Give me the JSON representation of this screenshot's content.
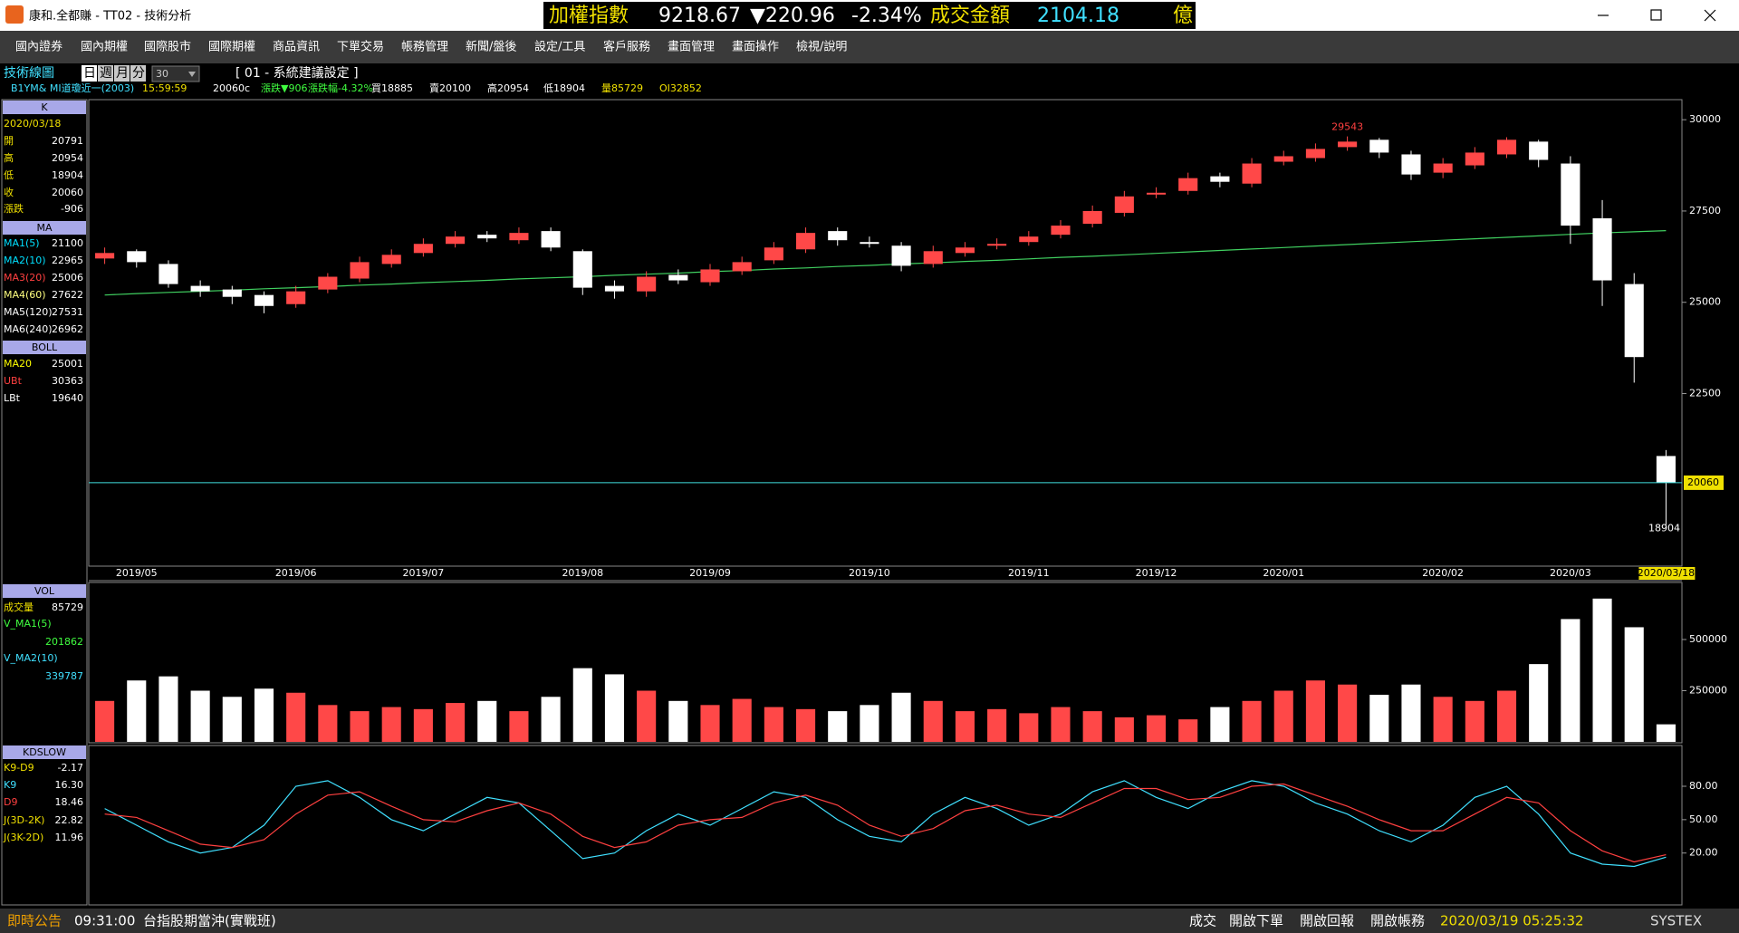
{
  "window": {
    "title": "康和.全都賺 - TT02 - 技術分析"
  },
  "ticker": {
    "index_name": "加權指數",
    "index_value": "9218.67",
    "change": "▼220.96",
    "change_pct": "-2.34%",
    "turnover_label": "成交金額",
    "turnover": "2104.18",
    "unit": "億"
  },
  "menu": [
    "國內證券",
    "國內期權",
    "國際股市",
    "國際期權",
    "商品資訊",
    "下單交易",
    "帳務管理",
    "新聞/盤後",
    "設定/工具",
    "客戶服務",
    "畫面管理",
    "畫面操作",
    "檢視/說明"
  ],
  "toolbar": {
    "label": "技術線圖",
    "periods": [
      "日",
      "週",
      "月",
      "分"
    ],
    "interval": "30",
    "preset": "[ 01 - 系統建議設定 ]"
  },
  "quote_line": [
    "B1YM&  MI道瓊近一(2003)",
    "15:59:59",
    "20060c",
    "漲跌▼906",
    "漲跌幅-4.32%",
    "買18885",
    "賣20100",
    "高20954",
    "低18904",
    "量85729",
    "OI32852"
  ],
  "panels": {
    "k": {
      "title": "K",
      "date": "2020/03/18",
      "labels": [
        "開",
        "高",
        "低",
        "收",
        "漲跌"
      ],
      "change": -906
    },
    "ma": {
      "title": "MA",
      "items": [
        {
          "name": "MA1(5)",
          "value": 21100,
          "color": "#00e0ff"
        },
        {
          "name": "MA2(10)",
          "value": 22965,
          "color": "#00e0ff"
        },
        {
          "name": "MA3(20)",
          "value": 25006,
          "color": "#ff4040"
        },
        {
          "name": "MA4(60)",
          "value": 27622,
          "color": "#ffff80"
        },
        {
          "name": "MA5(120)",
          "value": 27531,
          "color": "#ffffff"
        }
      ]
    },
    "boll": {
      "title": "BOLL",
      "items": [
        {
          "name": "MA20",
          "value": 25001,
          "color": "#ffff00"
        },
        {
          "name": "UBt",
          "value": 30363,
          "color": "#ff4040"
        },
        {
          "name": "LBt",
          "value": 19640,
          "color": "#ffffff"
        }
      ]
    }
  },
  "status_bar": {
    "left": [
      "即時公告",
      "09:31:00",
      "台指股期當沖(實戰班)"
    ],
    "right": [
      "成交",
      "開啟下單",
      "開啟回報",
      "開啟帳務",
      "2020/03/19 05:25:32",
      "SYSTEX"
    ]
  },
  "chart_data": [
    {
      "type": "candlestick",
      "categories": [
        null,
        "2019/05",
        null,
        null,
        null,
        null,
        "2019/06",
        null,
        null,
        null,
        "2019/07",
        null,
        null,
        null,
        null,
        "2019/08",
        null,
        null,
        null,
        "2019/09",
        null,
        null,
        null,
        null,
        "2019/10",
        null,
        null,
        null,
        null,
        "2019/11",
        null,
        null,
        null,
        "2019/12",
        null,
        null,
        null,
        "2020/01",
        null,
        null,
        null,
        null,
        "2020/02",
        null,
        null,
        null,
        "2020/03",
        null,
        null,
        "2020/03/18"
      ],
      "open": [
        26200,
        26400,
        26050,
        25450,
        25350,
        25200,
        24950,
        25350,
        25650,
        26050,
        26350,
        26600,
        26850,
        26700,
        26950,
        26400,
        25450,
        25300,
        25750,
        25550,
        25850,
        26150,
        26450,
        26950,
        26650,
        26550,
        26050,
        26350,
        26550,
        26650,
        26850,
        27150,
        27450,
        27950,
        28050,
        28450,
        28250,
        28850,
        28950,
        29250,
        29450,
        29050,
        28550,
        28750,
        29050,
        29400,
        28800,
        27300,
        25500,
        20791
      ],
      "high": [
        26500,
        26450,
        26150,
        25600,
        25450,
        25300,
        25450,
        25800,
        26250,
        26450,
        26750,
        26950,
        26950,
        27050,
        27050,
        26450,
        25600,
        25850,
        25900,
        26050,
        26250,
        26650,
        27050,
        27050,
        26800,
        26650,
        26550,
        26650,
        26750,
        26950,
        27250,
        27650,
        28050,
        28150,
        28550,
        28550,
        28950,
        29150,
        29350,
        29543,
        29500,
        29150,
        28950,
        29250,
        29520,
        29450,
        29000,
        27800,
        25800,
        20954
      ],
      "low": [
        26050,
        25950,
        25400,
        25150,
        24950,
        24700,
        24850,
        25250,
        25550,
        25950,
        26250,
        26500,
        26650,
        26600,
        26400,
        25200,
        25100,
        25150,
        25500,
        25450,
        25750,
        26050,
        26350,
        26550,
        26500,
        25850,
        25950,
        26250,
        26450,
        26550,
        26750,
        27050,
        27350,
        27850,
        27950,
        28150,
        28150,
        28750,
        28850,
        29150,
        28950,
        28350,
        28400,
        28650,
        28950,
        28700,
        26600,
        24900,
        22800,
        18904
      ],
      "close": [
        26350,
        26100,
        25500,
        25300,
        25150,
        24900,
        25300,
        25700,
        26100,
        26300,
        26600,
        26800,
        26750,
        26900,
        26500,
        25400,
        25300,
        25700,
        25600,
        25900,
        26100,
        26500,
        26900,
        26700,
        26600,
        26000,
        26400,
        26500,
        26600,
        26800,
        27100,
        27500,
        27900,
        28000,
        28400,
        28300,
        28800,
        29000,
        29200,
        29400,
        29100,
        28500,
        28800,
        29100,
        29450,
        28900,
        27100,
        25600,
        23500,
        20060
      ],
      "up_color": "#ff4848",
      "down_color": "#ffffff",
      "series": [
        {
          "name": "MA6(240)",
          "color": "#40d060",
          "values": [
            25200,
            25240,
            25270,
            25300,
            25330,
            25370,
            25400,
            25430,
            25470,
            25500,
            25540,
            25570,
            25600,
            25640,
            25670,
            25700,
            25740,
            25770,
            25800,
            25840,
            25870,
            25910,
            25940,
            25980,
            26010,
            26050,
            26080,
            26120,
            26150,
            26190,
            26230,
            26260,
            26300,
            26340,
            26380,
            26420,
            26460,
            26500,
            26540,
            26580,
            26620,
            26660,
            26700,
            26740,
            26780,
            26820,
            26860,
            26900,
            26930,
            26962
          ]
        }
      ],
      "ylim": [
        17800,
        30500
      ],
      "yticks": [
        22500,
        25000,
        27500,
        30000
      ]
    },
    {
      "type": "bar",
      "title": "VOL",
      "name": "成交量",
      "values": [
        200000,
        300000,
        320000,
        250000,
        220000,
        260000,
        240000,
        180000,
        150000,
        170000,
        160000,
        190000,
        200000,
        150000,
        220000,
        360000,
        330000,
        250000,
        200000,
        180000,
        210000,
        170000,
        160000,
        150000,
        180000,
        240000,
        200000,
        150000,
        160000,
        140000,
        170000,
        150000,
        120000,
        130000,
        110000,
        170000,
        200000,
        250000,
        300000,
        280000,
        230000,
        280000,
        220000,
        200000,
        250000,
        380000,
        600000,
        700000,
        560000,
        85729
      ],
      "indicators": [
        {
          "name": "V_MA1(5)",
          "value": 201862
        },
        {
          "name": "V_MA2(10)",
          "value": 339787
        }
      ],
      "ylim": [
        0,
        770000
      ],
      "yticks": [
        250000,
        500000
      ]
    },
    {
      "type": "line",
      "title": "KDSLOW",
      "series": [
        {
          "name": "K9",
          "color": "#40e0ff",
          "values": [
            60,
            45,
            30,
            20,
            25,
            45,
            80,
            85,
            70,
            50,
            40,
            55,
            70,
            65,
            40,
            15,
            20,
            40,
            55,
            45,
            60,
            75,
            70,
            50,
            35,
            30,
            55,
            70,
            60,
            45,
            55,
            75,
            85,
            70,
            60,
            75,
            85,
            80,
            65,
            55,
            40,
            30,
            45,
            70,
            80,
            55,
            20,
            10,
            8,
            16.3
          ],
          "value_labels": [
            null,
            null,
            null,
            null,
            null,
            null,
            null,
            null,
            null,
            null,
            null,
            null,
            null,
            null,
            null,
            null,
            null,
            null,
            null,
            null,
            null,
            null,
            null,
            null,
            null,
            null,
            null,
            null,
            null,
            null,
            null,
            null,
            null,
            null,
            null,
            null,
            null,
            null,
            null,
            null,
            null,
            null,
            null,
            null,
            null,
            null,
            null,
            null,
            null,
            "16.30"
          ]
        },
        {
          "name": "D9",
          "color": "#ff4040",
          "values": [
            55,
            52,
            40,
            28,
            25,
            32,
            55,
            72,
            75,
            62,
            50,
            48,
            58,
            65,
            55,
            35,
            25,
            30,
            45,
            50,
            52,
            65,
            72,
            63,
            45,
            35,
            42,
            58,
            63,
            55,
            52,
            65,
            78,
            78,
            68,
            70,
            80,
            82,
            72,
            62,
            50,
            40,
            40,
            55,
            70,
            65,
            40,
            22,
            12,
            18.46
          ],
          "value_labels": [
            null,
            null,
            null,
            null,
            null,
            null,
            null,
            null,
            null,
            null,
            null,
            null,
            null,
            null,
            null,
            null,
            null,
            null,
            null,
            null,
            null,
            null,
            null,
            null,
            null,
            null,
            null,
            null,
            null,
            null,
            null,
            null,
            null,
            null,
            null,
            null,
            null,
            null,
            null,
            null,
            null,
            null,
            null,
            null,
            null,
            null,
            null,
            null,
            null,
            "18.46"
          ]
        }
      ],
      "indicators": [
        {
          "name": "K9-D9",
          "value": -2.17
        },
        {
          "name": "J(3D-2K)",
          "value": 22.82
        },
        {
          "name": "J(3K-2D)",
          "value": 11.96
        }
      ],
      "ylim": [
        -25,
        115
      ],
      "yticks": [
        {
          "value": 20,
          "label": "20.00"
        },
        {
          "value": 50,
          "label": "50.00"
        },
        {
          "value": 80,
          "label": "80.00"
        }
      ]
    }
  ]
}
